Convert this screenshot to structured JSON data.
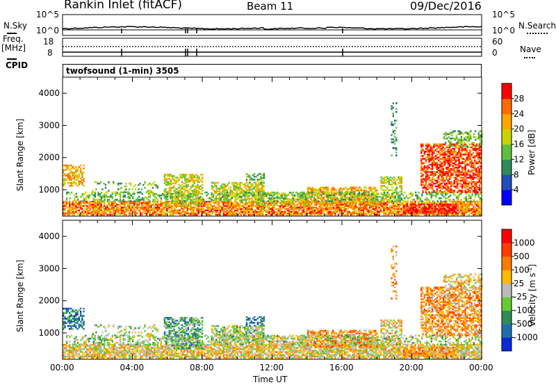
{
  "header": {
    "radar": "Rankin Inlet (fitACF)",
    "beam": "Beam 11",
    "date": "09/Dec/2016"
  },
  "top_panels": {
    "nsky_label": "N.Sky",
    "nsky_ticks": [
      "10^5",
      "10^0"
    ],
    "nsearch_label": "N.Search",
    "nsearch_ticks": [
      "10^5",
      "10^0"
    ],
    "freq_label_1": "Freq.",
    "freq_label_2": "[MHz]",
    "freq_ticks": [
      "18",
      "8"
    ],
    "nave_label": "Nave",
    "nave_ticks": [
      "60",
      "0"
    ],
    "cpid_label": "CPID",
    "cpid_text": "twofsound (1-min) 3505"
  },
  "colors": {
    "power_scale": [
      "#0000ff",
      "#1f4fb5",
      "#2e8b57",
      "#5fbf3f",
      "#c8d400",
      "#ffa500",
      "#ff6a00",
      "#ff0000"
    ],
    "velocity_scale": [
      "#0a2ad8",
      "#1f6fb0",
      "#2e8b57",
      "#66cc33",
      "#bbbbbb",
      "#ffbb00",
      "#ff7a00",
      "#ff3b00",
      "#ff0000"
    ]
  },
  "chart_data": [
    {
      "type": "heatmap",
      "name": "power",
      "ylabel": "Slant Range [km]",
      "y_ticks": [
        1000,
        2000,
        3000,
        4000
      ],
      "ylim": [
        180,
        4500
      ],
      "x_ticks": [
        "00:00",
        "04:00",
        "08:00",
        "12:00",
        "16:00",
        "20:00",
        "00:00"
      ],
      "xlim_hours": [
        0,
        24
      ],
      "colorbar_label": "Power [dB]",
      "colorbar_ticks": [
        "28",
        "24",
        "20",
        "16",
        "12",
        "8",
        "4"
      ],
      "colorbar_range": [
        0,
        30
      ]
    },
    {
      "type": "heatmap",
      "name": "velocity",
      "ylabel": "Slant Range [km]",
      "y_ticks": [
        1000,
        2000,
        3000,
        4000
      ],
      "ylim": [
        180,
        4500
      ],
      "x_ticks": [
        "00:00",
        "04:00",
        "08:00",
        "12:00",
        "16:00",
        "20:00",
        "00:00"
      ],
      "xlim_hours": [
        0,
        24
      ],
      "xlabel": "Time UT",
      "colorbar_label": "Velocity [m s^-1]",
      "colorbar_ticks": [
        "1000",
        "500",
        "100",
        "25",
        "-25",
        "-100",
        "-500",
        "-1000"
      ]
    }
  ]
}
